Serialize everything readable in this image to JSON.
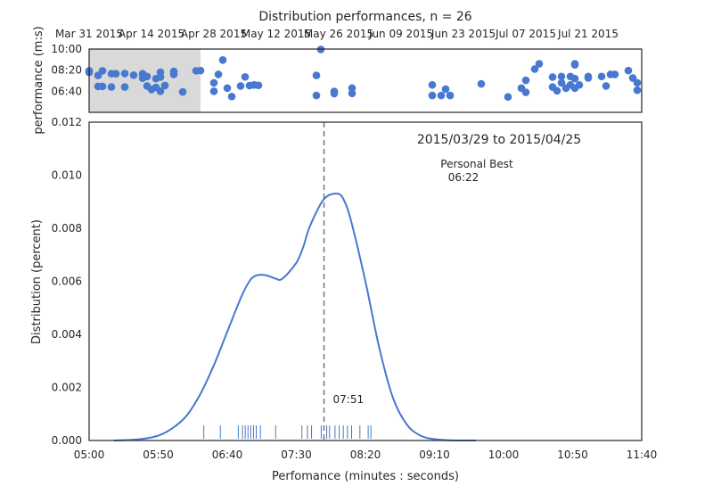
{
  "chart_data": [
    {
      "type": "scatter",
      "title": "Distribution performances, n = 26",
      "ylabel": "performance (m:s)",
      "x_ticks": [
        "Mar 31 2015",
        "Apr 14 2015",
        "Apr 28 2015",
        "May 12 2015",
        "May 26 2015",
        "Jun 09 2015",
        "Jun 23 2015",
        "Jul 07 2015",
        "Jul 21 2015"
      ],
      "x_tick_dates": [
        "2015-03-31",
        "2015-04-14",
        "2015-04-28",
        "2015-05-12",
        "2015-05-26",
        "2015-06-09",
        "2015-06-23",
        "2015-07-07",
        "2015-07-21"
      ],
      "xlim": [
        "2015-03-31",
        "2015-08-02"
      ],
      "y_ticks": [
        "10:00",
        "08:20",
        "06:40"
      ],
      "y_tick_seconds": [
        600,
        500,
        400
      ],
      "ylim_seconds": [
        300,
        600
      ],
      "highlight_range": [
        "2015-03-31",
        "2015-04-25"
      ],
      "highlight_color": "#d9d9d9",
      "point_color": "#4878cf",
      "points": [
        {
          "x": "2015-03-31",
          "y": 490
        },
        {
          "x": "2015-03-31",
          "y": 497
        },
        {
          "x": "2015-04-02",
          "y": 475
        },
        {
          "x": "2015-04-02",
          "y": 423
        },
        {
          "x": "2015-04-03",
          "y": 497
        },
        {
          "x": "2015-04-03",
          "y": 423
        },
        {
          "x": "2015-04-05",
          "y": 483
        },
        {
          "x": "2015-04-05",
          "y": 420
        },
        {
          "x": "2015-04-06",
          "y": 483
        },
        {
          "x": "2015-04-08",
          "y": 484
        },
        {
          "x": "2015-04-08",
          "y": 420
        },
        {
          "x": "2015-04-10",
          "y": 476
        },
        {
          "x": "2015-04-12",
          "y": 483
        },
        {
          "x": "2015-04-12",
          "y": 462
        },
        {
          "x": "2015-04-13",
          "y": 470
        },
        {
          "x": "2015-04-13",
          "y": 425
        },
        {
          "x": "2015-04-14",
          "y": 408
        },
        {
          "x": "2015-04-15",
          "y": 460
        },
        {
          "x": "2015-04-15",
          "y": 418
        },
        {
          "x": "2015-04-16",
          "y": 490
        },
        {
          "x": "2015-04-16",
          "y": 467
        },
        {
          "x": "2015-04-16",
          "y": 400
        },
        {
          "x": "2015-04-17",
          "y": 427
        },
        {
          "x": "2015-04-19",
          "y": 494
        },
        {
          "x": "2015-04-19",
          "y": 480
        },
        {
          "x": "2015-04-21",
          "y": 397
        },
        {
          "x": "2015-04-24",
          "y": 497
        },
        {
          "x": "2015-04-25",
          "y": 498
        },
        {
          "x": "2015-04-28",
          "y": 440
        },
        {
          "x": "2015-04-28",
          "y": 400
        },
        {
          "x": "2015-04-29",
          "y": 480
        },
        {
          "x": "2015-04-30",
          "y": 548
        },
        {
          "x": "2015-05-01",
          "y": 415
        },
        {
          "x": "2015-05-02",
          "y": 375
        },
        {
          "x": "2015-05-04",
          "y": 425
        },
        {
          "x": "2015-05-05",
          "y": 468
        },
        {
          "x": "2015-05-06",
          "y": 427
        },
        {
          "x": "2015-05-07",
          "y": 430
        },
        {
          "x": "2015-05-08",
          "y": 428
        },
        {
          "x": "2015-05-21",
          "y": 475
        },
        {
          "x": "2015-05-21",
          "y": 380
        },
        {
          "x": "2015-05-22",
          "y": 598
        },
        {
          "x": "2015-05-25",
          "y": 399
        },
        {
          "x": "2015-05-25",
          "y": 389
        },
        {
          "x": "2015-05-29",
          "y": 415
        },
        {
          "x": "2015-05-29",
          "y": 390
        },
        {
          "x": "2015-06-16",
          "y": 430
        },
        {
          "x": "2015-06-16",
          "y": 380
        },
        {
          "x": "2015-06-18",
          "y": 380
        },
        {
          "x": "2015-06-19",
          "y": 410
        },
        {
          "x": "2015-06-20",
          "y": 380
        },
        {
          "x": "2015-06-27",
          "y": 435
        },
        {
          "x": "2015-07-03",
          "y": 373
        },
        {
          "x": "2015-07-06",
          "y": 415
        },
        {
          "x": "2015-07-07",
          "y": 452
        },
        {
          "x": "2015-07-07",
          "y": 395
        },
        {
          "x": "2015-07-09",
          "y": 505
        },
        {
          "x": "2015-07-10",
          "y": 530
        },
        {
          "x": "2015-07-13",
          "y": 467
        },
        {
          "x": "2015-07-13",
          "y": 420
        },
        {
          "x": "2015-07-14",
          "y": 402
        },
        {
          "x": "2015-07-15",
          "y": 470
        },
        {
          "x": "2015-07-15",
          "y": 440
        },
        {
          "x": "2015-07-16",
          "y": 415
        },
        {
          "x": "2015-07-17",
          "y": 470
        },
        {
          "x": "2015-07-17",
          "y": 430
        },
        {
          "x": "2015-07-18",
          "y": 530
        },
        {
          "x": "2015-07-18",
          "y": 525
        },
        {
          "x": "2015-07-18",
          "y": 460
        },
        {
          "x": "2015-07-18",
          "y": 415
        },
        {
          "x": "2015-07-19",
          "y": 430
        },
        {
          "x": "2015-07-21",
          "y": 470
        },
        {
          "x": "2015-07-21",
          "y": 463
        },
        {
          "x": "2015-07-24",
          "y": 470
        },
        {
          "x": "2015-07-25",
          "y": 425
        },
        {
          "x": "2015-07-26",
          "y": 480
        },
        {
          "x": "2015-07-27",
          "y": 480
        },
        {
          "x": "2015-07-30",
          "y": 498
        },
        {
          "x": "2015-07-31",
          "y": 463
        },
        {
          "x": "2015-08-01",
          "y": 440
        },
        {
          "x": "2015-08-01",
          "y": 405
        }
      ]
    },
    {
      "type": "line",
      "title": "2015/03/29 to 2015/04/25",
      "xlabel": "Perfomance (minutes : seconds)",
      "ylabel": "Distribution (percent)",
      "x_ticks": [
        "05:00",
        "05:50",
        "06:40",
        "07:30",
        "08:20",
        "09:10",
        "10:00",
        "10:50",
        "11:40"
      ],
      "x_tick_seconds": [
        300,
        350,
        400,
        450,
        500,
        550,
        600,
        650,
        700
      ],
      "xlim_seconds": [
        300,
        700
      ],
      "y_ticks": [
        "0.000",
        "0.002",
        "0.004",
        "0.006",
        "0.008",
        "0.010",
        "0.012"
      ],
      "ylim": [
        0,
        0.012
      ],
      "line_color": "#4878cf",
      "density_curve": {
        "x_seconds": [
          318,
          330,
          340,
          350,
          360,
          370,
          380,
          390,
          400,
          410,
          416,
          420,
          425,
          430,
          435,
          440,
          450,
          455,
          460,
          470,
          480,
          485,
          490,
          500,
          510,
          520,
          530,
          540,
          550,
          560,
          570,
          580
        ],
        "y": [
          0,
          2e-05,
          7e-05,
          0.00018,
          0.00045,
          0.0009,
          0.0017,
          0.0028,
          0.0041,
          0.0054,
          0.006,
          0.0062,
          0.00625,
          0.0062,
          0.0061,
          0.0061,
          0.0067,
          0.0073,
          0.0081,
          0.0091,
          0.0093,
          0.009,
          0.0082,
          0.006,
          0.0035,
          0.0016,
          0.0006,
          0.00018,
          5e-05,
          1e-05,
          0,
          0
        ]
      },
      "rug_seconds": [
        383,
        395,
        408,
        411,
        413,
        415,
        417,
        419,
        421,
        424,
        435,
        454,
        458,
        461,
        468,
        472,
        474,
        478,
        481,
        484,
        487,
        490,
        496,
        502,
        504
      ],
      "marker": {
        "x_seconds": 470,
        "label": "07:51"
      },
      "annotation": {
        "label": "Personal Best",
        "value": "06:22"
      }
    }
  ]
}
